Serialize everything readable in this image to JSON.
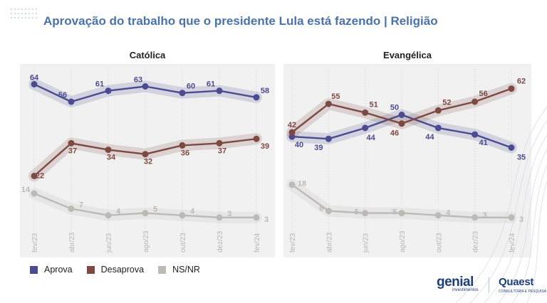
{
  "title": "Aprovação do trabalho que o presidente Lula está fazendo | Religião",
  "colors": {
    "aprova": "#4b4b91",
    "desaprova": "#7c4a43",
    "nsnr": "#bdb9b5",
    "title": "#4a72ad"
  },
  "legend": [
    {
      "label": "Aprova",
      "color": "#4b4b91"
    },
    {
      "label": "Desaprova",
      "color": "#7c4a43"
    },
    {
      "label": "NS/NR",
      "color": "#bdb9b5"
    }
  ],
  "logos": {
    "genial": "genial",
    "genial_sub": "investimentos",
    "quaest": "Quaest",
    "quaest_sub": "CONSULTORIA E PESQUISA"
  },
  "chart_data": [
    {
      "type": "line",
      "title": "Católica",
      "x": [
        "fev/23",
        "abr/23",
        "jun/23",
        "ago/23",
        "out/23",
        "dez/23",
        "fev/24"
      ],
      "ylim": [
        0,
        70
      ],
      "series": [
        {
          "name": "Aprova",
          "values": [
            64,
            56,
            61,
            63,
            60,
            61,
            58
          ]
        },
        {
          "name": "Desaprova",
          "values": [
            22,
            37,
            34,
            32,
            36,
            37,
            39
          ]
        },
        {
          "name": "NS/NR",
          "values": [
            14,
            7,
            4,
            5,
            4,
            3,
            3
          ]
        }
      ]
    },
    {
      "type": "line",
      "title": "Evangélica",
      "x": [
        "fev/23",
        "abr/23",
        "jun/23",
        "ago/23",
        "out/23",
        "dez/23",
        "fev/24"
      ],
      "ylim": [
        0,
        70
      ],
      "series": [
        {
          "name": "Aprova",
          "values": [
            40,
            39,
            44,
            50,
            44,
            41,
            35
          ]
        },
        {
          "name": "Desaprova",
          "values": [
            42,
            55,
            51,
            46,
            52,
            56,
            62
          ]
        },
        {
          "name": "NS/NR",
          "values": [
            18,
            6,
            5,
            5,
            4,
            3,
            3
          ]
        }
      ]
    }
  ]
}
